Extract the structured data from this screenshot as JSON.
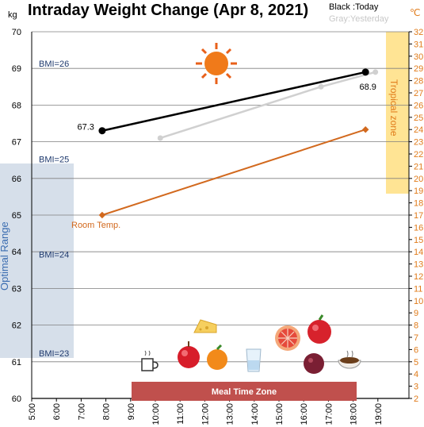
{
  "chart_data": {
    "type": "line",
    "title": "Intraday Weight Change (Apr 8, 2021)",
    "legend": {
      "today": "Black :Today",
      "yesterday": "Gray:Yesterday"
    },
    "left_axis": {
      "unit": "kg",
      "min": 60,
      "max": 70,
      "ticks": [
        "60",
        "61",
        "62",
        "63",
        "64",
        "65",
        "66",
        "67",
        "68",
        "69",
        "70"
      ]
    },
    "right_axis": {
      "unit": "℃",
      "min": 2,
      "max": 32,
      "ticks": [
        "2",
        "3",
        "4",
        "5",
        "6",
        "7",
        "8",
        "9",
        "10",
        "11",
        "12",
        "13",
        "14",
        "15",
        "16",
        "17",
        "18",
        "19",
        "20",
        "21",
        "22",
        "23",
        "24",
        "25",
        "26",
        "27",
        "28",
        "29",
        "30",
        "31",
        "32"
      ]
    },
    "x_axis": {
      "min": 5,
      "max": 19.5,
      "ticks": [
        {
          "v": 5,
          "label": "5:00"
        },
        {
          "v": 6,
          "label": "6:00"
        },
        {
          "v": 7,
          "label": "7:00"
        },
        {
          "v": 8,
          "label": "8:00"
        },
        {
          "v": 9,
          "label": "9:00"
        },
        {
          "v": 10,
          "label": "10:00"
        },
        {
          "v": 11,
          "label": "11:00"
        },
        {
          "v": 12,
          "label": "12:00"
        },
        {
          "v": 13,
          "label": "13:00"
        },
        {
          "v": 14,
          "label": "14:00"
        },
        {
          "v": 15,
          "label": "15:00"
        },
        {
          "v": 16,
          "label": "16:00"
        },
        {
          "v": 17,
          "label": "17:00"
        },
        {
          "v": 18,
          "label": "18:00"
        },
        {
          "v": 19,
          "label": "19:00"
        }
      ]
    },
    "bmi_lines": [
      {
        "label": "BMI=26",
        "kg": 69
      },
      {
        "label": "BMI=25",
        "kg": 66.4
      },
      {
        "label": "BMI=24",
        "kg": 63.8
      },
      {
        "label": "BMI=23",
        "kg": 61.1
      }
    ],
    "series": [
      {
        "name": "Today",
        "color": "#000000",
        "points": [
          [
            7.85,
            67.3
          ],
          [
            18.5,
            68.9
          ]
        ],
        "labels": [
          "67.3",
          "68.9"
        ]
      },
      {
        "name": "Yesterday",
        "color": "#d0d0d0",
        "points": [
          [
            10.2,
            67.1
          ],
          [
            16.7,
            68.5
          ],
          [
            18.9,
            68.9
          ]
        ]
      },
      {
        "name": "Room Temp.",
        "color": "#d2691e",
        "axis": "right",
        "points": [
          [
            7.85,
            17
          ],
          [
            18.5,
            24
          ]
        ]
      }
    ],
    "zones": {
      "optimal": {
        "label": "Optimal Range",
        "from_kg": 61,
        "to_kg": 66.4
      },
      "tropical": {
        "label": "Tropical zone",
        "from_c": 19,
        "to_c": 32
      },
      "meal": {
        "label": "Meal Time Zone"
      }
    },
    "room_temp_label": "Room Temp.",
    "icons": [
      "sun-icon",
      "coffee-icon",
      "apple-icon",
      "orange-icon",
      "water-glass-icon",
      "cheese-icon",
      "grapefruit-icon",
      "red-apple-icon",
      "berry-bowl-icon",
      "soup-bowl-icon"
    ],
    "colors": {
      "today": "#000000",
      "yesterday": "#d0d0d0",
      "room_temp": "#d2691e",
      "bmi_text": "#1f3a6e",
      "tropical": "#ffd966",
      "optimal": "#d6dfea",
      "meal": "#c0504d",
      "grid": "#7f7f7f"
    }
  }
}
